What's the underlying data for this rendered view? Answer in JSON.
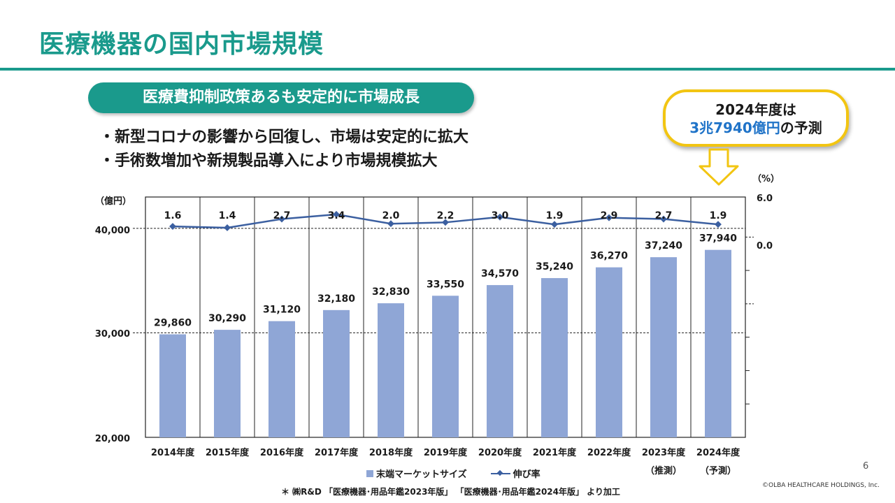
{
  "slide": {
    "title": "医療機器の国内市場規模",
    "headline": "医療費抑制政策あるも安定的に市場成長",
    "bullets": [
      "・新型コロナの影響から回復し、市場は安定的に拡大",
      "・手術数増加や新規製品導入により市場規模拡大"
    ],
    "callout": {
      "line1": "2024年度は",
      "highlight": "3兆7940億円",
      "line2_suffix": "の予測"
    },
    "page_number": "6",
    "copyright": "©OLBA HEALTHCARE HOLDINGS, Inc.",
    "source": "＊ ㈱R&D 「医療機器･用品年鑑2023年版」 「医療機器･用品年鑑2024年版」 より加工"
  },
  "colors": {
    "accent": "#1a9a8c",
    "callout_border": "#f2c512",
    "highlight_text": "#1f73c8",
    "bar": "#8fa6d6",
    "line": "#3b5fa0"
  },
  "chart_data": {
    "type": "bar",
    "categories": [
      "2014年度",
      "2015年度",
      "2016年度",
      "2017年度",
      "2018年度",
      "2019年度",
      "2020年度",
      "2021年度",
      "2022年度",
      "2023年度",
      "2024年度"
    ],
    "category_notes": [
      "",
      "",
      "",
      "",
      "",
      "",
      "",
      "",
      "",
      "（推測）",
      "（予測）"
    ],
    "series": [
      {
        "name": "末端マーケットサイズ",
        "type": "bar",
        "axis": "left",
        "values": [
          29860,
          30290,
          31120,
          32180,
          32830,
          33550,
          34570,
          35240,
          36270,
          37240,
          37940
        ],
        "labels": [
          "29,860",
          "30,290",
          "31,120",
          "32,180",
          "32,830",
          "33,550",
          "34,570",
          "35,240",
          "36,270",
          "37,240",
          "37,940"
        ]
      },
      {
        "name": "伸び率",
        "type": "line",
        "axis": "right",
        "values": [
          1.6,
          1.4,
          2.7,
          3.4,
          2.0,
          2.2,
          3.0,
          1.9,
          2.9,
          2.7,
          1.9
        ],
        "labels": [
          "1.6",
          "1.4",
          "2.7",
          "3.4",
          "2.0",
          "2.2",
          "3.0",
          "1.9",
          "2.9",
          "2.7",
          "1.9"
        ]
      }
    ],
    "y_left": {
      "unit": "（億円）",
      "ticks": [
        "20,000",
        "30,000",
        "40,000"
      ],
      "range": [
        20000,
        43000
      ]
    },
    "y_right": {
      "unit": "（%）",
      "ticks": [
        "0.0",
        "6.0"
      ],
      "range": [
        -30,
        6
      ]
    },
    "grid": true,
    "legend": "bottom"
  }
}
